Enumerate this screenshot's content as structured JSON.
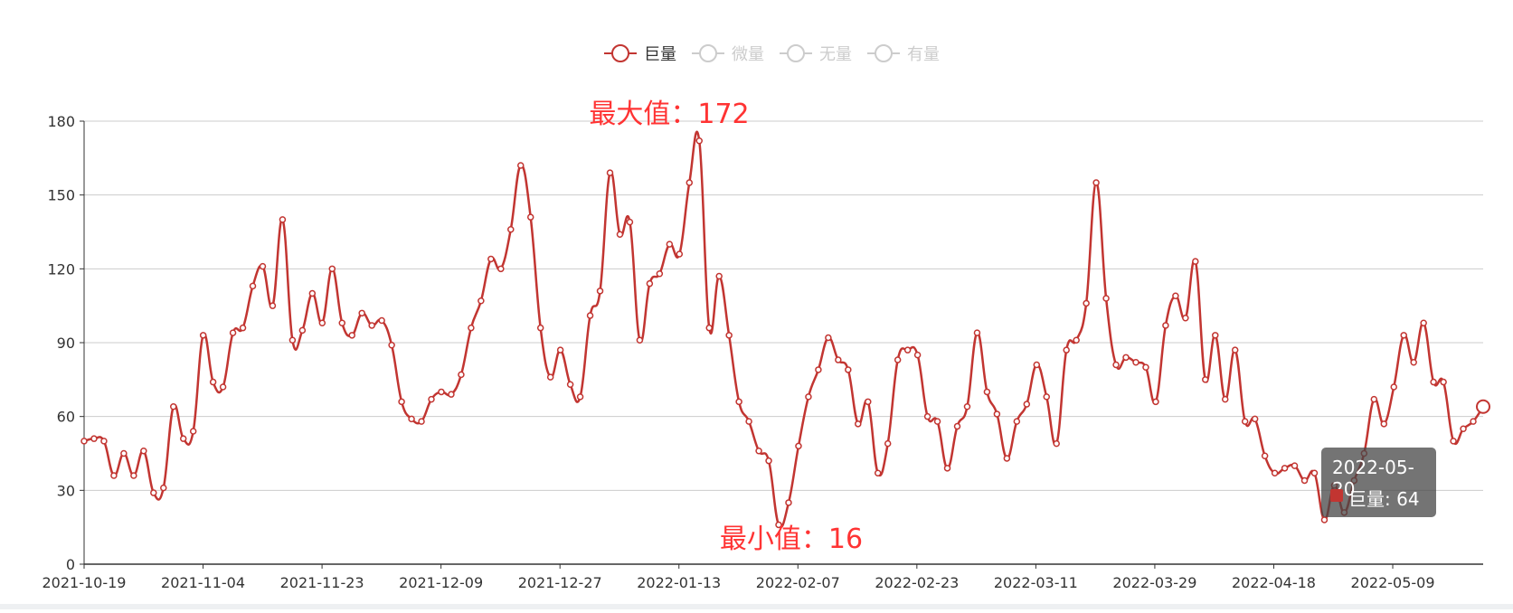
{
  "legend": {
    "items": [
      {
        "name": "巨量",
        "active": true,
        "color": "#c23531"
      },
      {
        "name": "微量",
        "active": false,
        "color": "#cccccc"
      },
      {
        "name": "无量",
        "active": false,
        "color": "#cccccc"
      },
      {
        "name": "有量",
        "active": false,
        "color": "#cccccc"
      }
    ]
  },
  "annotations": {
    "max_label": "最大值：172",
    "min_label": "最小值：16"
  },
  "tooltip": {
    "date": "2022-05-20",
    "series_name": "巨量",
    "value": 64,
    "text": "巨量: 64"
  },
  "chart_data": {
    "type": "line",
    "smooth": true,
    "ylim": [
      0,
      180
    ],
    "yticks": [
      0,
      30,
      60,
      90,
      120,
      150,
      180
    ],
    "grid": true,
    "legend_position": "top-center",
    "x_tick_labels": [
      "2021-10-19",
      "2021-11-04",
      "2021-11-23",
      "2021-12-09",
      "2021-12-27",
      "2022-01-13",
      "2022-02-07",
      "2022-02-23",
      "2022-03-11",
      "2022-03-29",
      "2022-04-18",
      "2022-05-09"
    ],
    "series": [
      {
        "name": "巨量",
        "color": "#c23531",
        "values": [
          50,
          51,
          50,
          36,
          45,
          36,
          46,
          29,
          31,
          64,
          51,
          54,
          93,
          74,
          72,
          94,
          96,
          113,
          121,
          105,
          140,
          91,
          95,
          110,
          98,
          120,
          98,
          93,
          102,
          97,
          99,
          89,
          66,
          59,
          58,
          67,
          70,
          69,
          77,
          96,
          107,
          124,
          120,
          136,
          162,
          141,
          96,
          76,
          87,
          73,
          68,
          101,
          111,
          159,
          134,
          139,
          91,
          114,
          118,
          130,
          126,
          155,
          172,
          96,
          117,
          93,
          66,
          58,
          46,
          42,
          16,
          25,
          48,
          68,
          79,
          92,
          83,
          79,
          57,
          66,
          37,
          49,
          83,
          87,
          85,
          60,
          58,
          39,
          56,
          64,
          94,
          70,
          61,
          43,
          58,
          65,
          81,
          68,
          49,
          87,
          91,
          106,
          155,
          108,
          81,
          84,
          82,
          80,
          66,
          97,
          109,
          100,
          123,
          75,
          93,
          67,
          87,
          58,
          59,
          44,
          37,
          39,
          40,
          34,
          37,
          18,
          32,
          21,
          34,
          45,
          67,
          57,
          72,
          93,
          82,
          98,
          74,
          74,
          50,
          55,
          58,
          64
        ]
      }
    ],
    "max": {
      "value": 172
    },
    "min": {
      "value": 16
    }
  }
}
